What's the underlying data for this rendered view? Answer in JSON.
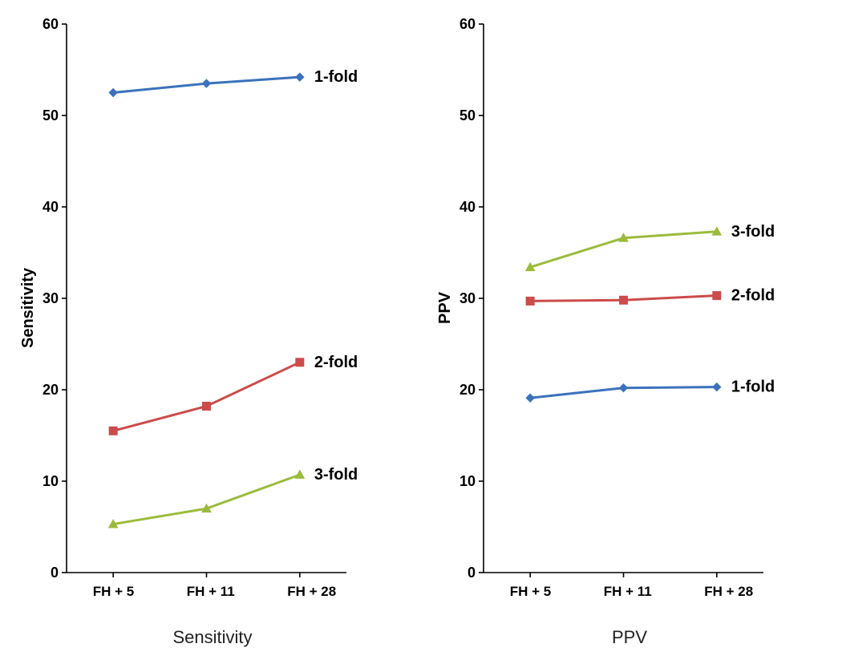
{
  "categories": [
    "FH + 5",
    "FH + 11",
    "FH + 28"
  ],
  "y": {
    "min": 0,
    "max": 60,
    "step": 10
  },
  "panels": [
    {
      "key": "sensitivity",
      "y_label": "Sensitivity",
      "footer_label": "Sensitivity",
      "series": [
        {
          "name": "1-fold",
          "values": [
            52.5,
            53.5,
            54.2
          ],
          "color": "#3b72bc",
          "marker": "diamond",
          "marker_size": 10
        },
        {
          "name": "2-fold",
          "values": [
            15.5,
            18.2,
            23.0
          ],
          "color": "#cc4b4b",
          "marker": "square",
          "marker_size": 10
        },
        {
          "name": "3-fold",
          "values": [
            5.3,
            7.0,
            10.7
          ],
          "color": "#9bbb3c",
          "marker": "triangle",
          "marker_size": 11
        }
      ]
    },
    {
      "key": "ppv",
      "y_label": "PPV",
      "footer_label": "PPV",
      "series": [
        {
          "name": "3-fold",
          "values": [
            33.4,
            36.6,
            37.3
          ],
          "color": "#9bbb3c",
          "marker": "triangle",
          "marker_size": 11
        },
        {
          "name": "2-fold",
          "values": [
            29.7,
            29.8,
            30.3
          ],
          "color": "#cc4b4b",
          "marker": "square",
          "marker_size": 10
        },
        {
          "name": "1-fold",
          "values": [
            19.1,
            20.2,
            20.3
          ],
          "color": "#3b72bc",
          "marker": "diamond",
          "marker_size": 10
        }
      ]
    }
  ]
}
